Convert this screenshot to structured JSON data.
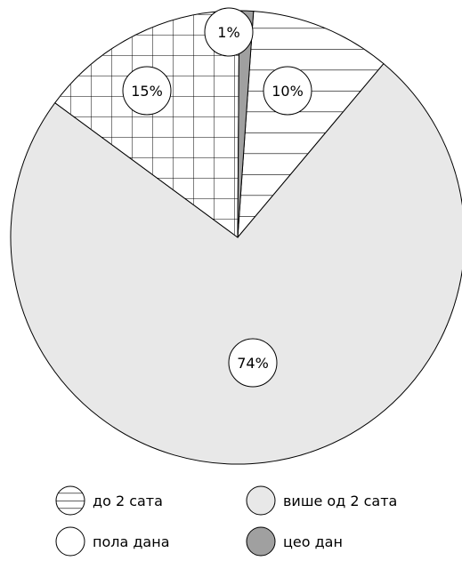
{
  "chart_data": {
    "type": "pie",
    "slices": [
      {
        "key": "up_to_2h",
        "label": "до 2 сата",
        "value": 10,
        "value_label": "10%",
        "pattern": "horizontal-lines",
        "fill": "#ffffff"
      },
      {
        "key": "more_than_2h",
        "label": "више од 2 сата",
        "value": 74,
        "value_label": "74%",
        "pattern": "solid",
        "fill": "#e8e8e8"
      },
      {
        "key": "half_day",
        "label": "пола дана",
        "value": 15,
        "value_label": "15%",
        "pattern": "grid",
        "fill": "#ffffff"
      },
      {
        "key": "whole_day",
        "label": "цео дан",
        "value": 1,
        "value_label": "1%",
        "pattern": "solid",
        "fill": "#a0a0a0"
      }
    ],
    "legend": [
      {
        "key": "up_to_2h",
        "label": "до 2 сата"
      },
      {
        "key": "more_than_2h",
        "label": "више од 2 сата"
      },
      {
        "key": "half_day",
        "label": "пола дана"
      },
      {
        "key": "whole_day",
        "label": "цео дан"
      }
    ],
    "legend_position": "bottom",
    "title": ""
  }
}
